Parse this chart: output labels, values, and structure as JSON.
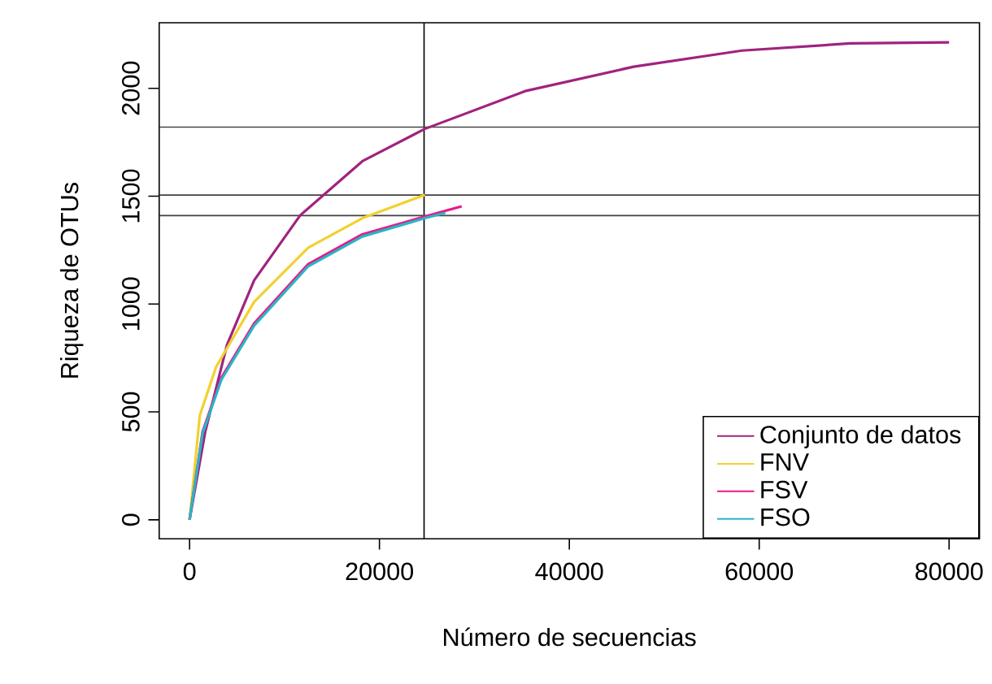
{
  "chart_data": {
    "type": "line",
    "xlabel": "Número de secuencias",
    "ylabel": "Riqueza de OTUs",
    "xlim": [
      -3200,
      83200
    ],
    "ylim": [
      -88,
      2304
    ],
    "xticks": [
      0,
      20000,
      40000,
      60000,
      80000
    ],
    "yticks": [
      0,
      500,
      1000,
      1500,
      2000
    ],
    "grid": false,
    "legend": "bottom right",
    "marker": "none",
    "line_style": "solid",
    "series": [
      {
        "name": "Conjunto de datos",
        "color": "#a0237f",
        "x": [
          0,
          1650,
          3940,
          6800,
          11650,
          18200,
          24790,
          35340,
          46770,
          58190,
          69600,
          80000
        ],
        "values": [
          0,
          408,
          810,
          1110,
          1411,
          1662,
          1812,
          1987,
          2100,
          2175,
          2208,
          2213
        ]
      },
      {
        "name": "FNV",
        "color": "#f2d12e",
        "x": [
          0,
          1080,
          2800,
          6800,
          12500,
          18200,
          24790
        ],
        "values": [
          0,
          484,
          709,
          1010,
          1261,
          1398,
          1506
        ]
      },
      {
        "name": "FSV",
        "color": "#e8198b",
        "x": [
          0,
          1370,
          3360,
          6800,
          12500,
          18200,
          24790,
          28660
        ],
        "values": [
          0,
          408,
          659,
          910,
          1185,
          1323,
          1406,
          1453
        ]
      },
      {
        "name": "FSO",
        "color": "#2ab5c5",
        "x": [
          0,
          1370,
          3360,
          6800,
          12500,
          18200,
          24790,
          26950
        ],
        "values": [
          0,
          400,
          650,
          900,
          1175,
          1313,
          1398,
          1423
        ]
      }
    ],
    "ref_lines": [
      {
        "axis": "x",
        "value": 24700
      },
      {
        "axis": "y",
        "value": 1820
      },
      {
        "axis": "y",
        "value": 1505
      },
      {
        "axis": "y",
        "value": 1410
      }
    ]
  }
}
